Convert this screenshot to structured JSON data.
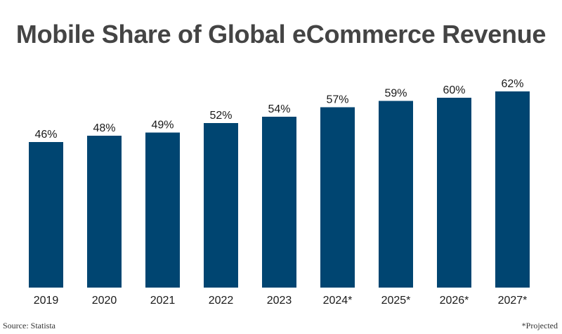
{
  "title": "Mobile Share of Global eCommerce Revenue",
  "source": "Source: Statista",
  "note": "*Projected",
  "colors": {
    "bar": "#004571",
    "text": "#1a1a1a",
    "title": "#444444"
  },
  "chart_data": {
    "type": "bar",
    "title": "Mobile Share of Global eCommerce Revenue",
    "xlabel": "",
    "ylabel": "",
    "ylim": [
      0,
      62
    ],
    "grid": false,
    "categories": [
      "2019",
      "2020",
      "2021",
      "2022",
      "2023",
      "2024*",
      "2025*",
      "2026*",
      "2027*"
    ],
    "values": [
      46,
      48,
      49,
      52,
      54,
      57,
      59,
      60,
      62
    ],
    "data_labels": [
      "46%",
      "48%",
      "49%",
      "52%",
      "54%",
      "57%",
      "59%",
      "60%",
      "62%"
    ]
  }
}
